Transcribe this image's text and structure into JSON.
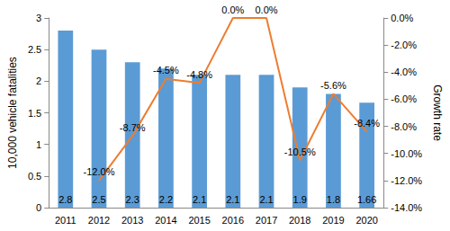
{
  "chart_data": {
    "type": "bar",
    "categories": [
      "2011",
      "2012",
      "2013",
      "2014",
      "2015",
      "2016",
      "2017",
      "2018",
      "2019",
      "2020"
    ],
    "series": [
      {
        "name": "10,000 vehicle fatalities",
        "type": "bar",
        "color": "#5b9bd5",
        "values": [
          2.8,
          2.5,
          2.3,
          2.2,
          2.1,
          2.1,
          2.1,
          1.9,
          1.8,
          1.66
        ]
      },
      {
        "name": "Growth rate",
        "type": "line",
        "axis": "y2",
        "color": "#ed7d31",
        "marker": "none",
        "line_style": "solid",
        "values": [
          null,
          -12.0,
          -8.7,
          -4.5,
          -4.8,
          0.0,
          0.0,
          -10.5,
          -5.6,
          -8.4
        ],
        "value_labels": [
          null,
          "-12.0%",
          "-8.7%",
          "-4.5%",
          "-4.8%",
          "0.0%",
          "0.0%",
          "-10.5%",
          "-5.6%",
          "-8.4%"
        ]
      }
    ],
    "ylabel": "10,000 vehicle fatalities",
    "y2label": "Growth rate",
    "ylim": [
      0,
      3
    ],
    "yticks": [
      0,
      0.5,
      1,
      1.5,
      2,
      2.5,
      3
    ],
    "y2lim": [
      -14,
      0
    ],
    "y2ticks": [
      {
        "value": -14,
        "label": "-14.0%"
      },
      {
        "value": -12,
        "label": "-12.0%"
      },
      {
        "value": -10,
        "label": "-10.0%"
      },
      {
        "value": -8,
        "label": "-8.0%"
      },
      {
        "value": -6,
        "label": "-6.0%"
      },
      {
        "value": -4,
        "label": "-4.0%"
      },
      {
        "value": -2,
        "label": "-2.0%"
      },
      {
        "value": 0,
        "label": "0.0%"
      }
    ],
    "data_labels": true,
    "grid": false,
    "legend": "none"
  }
}
